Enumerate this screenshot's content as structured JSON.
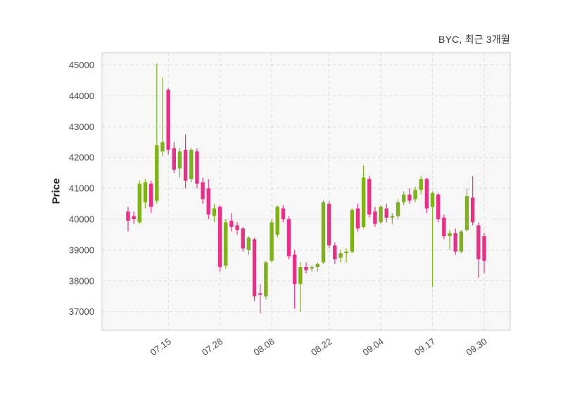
{
  "header": {
    "title": "BYC, 최근 3개월"
  },
  "chart_data": {
    "type": "candlestick",
    "title": "BYC, 최근 3개월",
    "ylabel": "Price",
    "ylim": [
      36400,
      45400
    ],
    "y_ticks": [
      37000,
      38000,
      39000,
      40000,
      41000,
      42000,
      43000,
      44000,
      45000
    ],
    "x_tick_labels": [
      "07.15",
      "07.28",
      "08.08",
      "08.22",
      "09.04",
      "09.17",
      "09.30"
    ],
    "x_tick_indices": [
      7,
      16,
      25,
      35,
      44,
      53,
      62
    ],
    "legend": "none",
    "grid": "dashed",
    "colors": {
      "up": "#7fb218",
      "down": "#e8308a",
      "plot_bg": "#f7f7f7",
      "grid": "#d8d8d8",
      "border": "#cfcfcf",
      "tick_text": "#4a4a4a",
      "title_text": "#333333"
    },
    "dates": [
      "07.04",
      "07.07",
      "07.08",
      "07.09",
      "07.10",
      "07.11",
      "07.14",
      "07.15",
      "07.16",
      "07.17",
      "07.18",
      "07.21",
      "07.22",
      "07.23",
      "07.24",
      "07.25",
      "07.28",
      "07.29",
      "07.30",
      "07.31",
      "08.01",
      "08.04",
      "08.05",
      "08.06",
      "08.07",
      "08.08",
      "08.11",
      "08.12",
      "08.13",
      "08.14",
      "08.15",
      "08.18",
      "08.19",
      "08.20",
      "08.21",
      "08.22",
      "08.25",
      "08.26",
      "08.27",
      "08.28",
      "08.29",
      "09.01",
      "09.02",
      "09.03",
      "09.04",
      "09.05",
      "09.08",
      "09.09",
      "09.10",
      "09.11",
      "09.12",
      "09.15",
      "09.16",
      "09.17",
      "09.18",
      "09.19",
      "09.22",
      "09.23",
      "09.24",
      "09.25",
      "09.26",
      "09.29",
      "09.30"
    ],
    "ohlc": [
      [
        40250,
        40400,
        39600,
        39950
      ],
      [
        40100,
        40250,
        39850,
        40000
      ],
      [
        39900,
        41250,
        39850,
        41150
      ],
      [
        40550,
        41300,
        40350,
        41200
      ],
      [
        41150,
        41250,
        40200,
        40400
      ],
      [
        40600,
        45050,
        40500,
        42400
      ],
      [
        42200,
        44600,
        42050,
        42500
      ],
      [
        44200,
        44250,
        42100,
        42250
      ],
      [
        42300,
        42500,
        41500,
        41600
      ],
      [
        41650,
        42300,
        41350,
        42200
      ],
      [
        42250,
        42750,
        41000,
        41250
      ],
      [
        41300,
        42300,
        41200,
        42250
      ],
      [
        42200,
        42300,
        41000,
        41150
      ],
      [
        41200,
        41350,
        40500,
        40650
      ],
      [
        41000,
        41300,
        40000,
        40150
      ],
      [
        40100,
        40500,
        39900,
        40350
      ],
      [
        40400,
        40450,
        38300,
        38450
      ],
      [
        38500,
        40000,
        38400,
        39900
      ],
      [
        39950,
        40200,
        39600,
        39750
      ],
      [
        39800,
        39900,
        39500,
        39650
      ],
      [
        39700,
        39750,
        38950,
        39050
      ],
      [
        39000,
        39450,
        38850,
        39400
      ],
      [
        39350,
        39400,
        37350,
        37500
      ],
      [
        37600,
        37900,
        36950,
        37550
      ],
      [
        37500,
        38650,
        37400,
        38600
      ],
      [
        38650,
        40000,
        38600,
        39900
      ],
      [
        39500,
        40450,
        39400,
        40400
      ],
      [
        40350,
        40450,
        39900,
        40000
      ],
      [
        40000,
        40100,
        38700,
        38800
      ],
      [
        38850,
        39000,
        37100,
        37900
      ],
      [
        37900,
        38600,
        37000,
        38450
      ],
      [
        38450,
        38600,
        38250,
        38350
      ],
      [
        38400,
        38500,
        38300,
        38450
      ],
      [
        38450,
        38600,
        38300,
        38550
      ],
      [
        38600,
        40600,
        38550,
        40550
      ],
      [
        40500,
        40600,
        39050,
        39150
      ],
      [
        39150,
        39250,
        38550,
        38700
      ],
      [
        38750,
        39000,
        38600,
        38900
      ],
      [
        38900,
        39050,
        38600,
        38950
      ],
      [
        38950,
        40350,
        38900,
        40300
      ],
      [
        40350,
        40500,
        39600,
        39700
      ],
      [
        39750,
        41750,
        39700,
        41350
      ],
      [
        41300,
        41400,
        40050,
        40150
      ],
      [
        40250,
        40400,
        39750,
        39850
      ],
      [
        39900,
        40450,
        39850,
        40400
      ],
      [
        40350,
        40500,
        39900,
        40050
      ],
      [
        40050,
        40200,
        39850,
        40100
      ],
      [
        40100,
        40650,
        40000,
        40550
      ],
      [
        40550,
        40900,
        40450,
        40800
      ],
      [
        40800,
        41000,
        40500,
        40600
      ],
      [
        40650,
        41050,
        40550,
        40950
      ],
      [
        40950,
        41400,
        40800,
        41300
      ],
      [
        41300,
        41350,
        40200,
        40350
      ],
      [
        40400,
        40900,
        37800,
        40850
      ],
      [
        40800,
        40850,
        39900,
        40000
      ],
      [
        40050,
        40150,
        39350,
        39450
      ],
      [
        39450,
        39650,
        39000,
        39550
      ],
      [
        39550,
        39700,
        38850,
        38950
      ],
      [
        38950,
        39650,
        38900,
        39600
      ],
      [
        39650,
        41000,
        39600,
        40750
      ],
      [
        40700,
        41400,
        39800,
        39900
      ],
      [
        39800,
        39900,
        38100,
        38700
      ],
      [
        39450,
        39550,
        38250,
        38650
      ]
    ]
  }
}
